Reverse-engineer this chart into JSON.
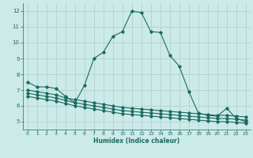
{
  "xlabel": "Humidex (Indice chaleur)",
  "bg_color": "#cceae7",
  "grid_color": "#aacfcc",
  "line_color": "#1a6b62",
  "xlim": [
    -0.5,
    23.5
  ],
  "ylim": [
    4.5,
    12.5
  ],
  "xticks": [
    0,
    1,
    2,
    3,
    4,
    5,
    6,
    7,
    8,
    9,
    10,
    11,
    12,
    13,
    14,
    15,
    16,
    17,
    18,
    19,
    20,
    21,
    22,
    23
  ],
  "yticks": [
    5,
    6,
    7,
    8,
    9,
    10,
    11,
    12
  ],
  "line1_x": [
    0,
    1,
    2,
    3,
    4,
    5,
    6,
    7,
    8,
    9,
    10,
    11,
    12,
    13,
    14,
    15,
    16,
    17,
    18,
    19,
    20,
    21,
    22,
    23
  ],
  "line1_y": [
    7.5,
    7.2,
    7.2,
    7.1,
    6.6,
    6.2,
    7.3,
    9.0,
    9.4,
    10.4,
    10.7,
    12.0,
    11.9,
    10.7,
    10.65,
    9.2,
    8.5,
    6.9,
    5.55,
    5.4,
    5.35,
    5.85,
    5.2,
    5.0
  ],
  "line2_x": [
    0,
    1,
    2,
    3,
    4,
    5,
    6,
    7,
    8,
    9,
    10,
    11,
    12,
    13,
    14,
    15,
    16,
    17,
    18,
    19,
    20,
    21,
    22,
    23
  ],
  "line2_y": [
    7.0,
    6.9,
    6.8,
    6.7,
    6.5,
    6.4,
    6.3,
    6.2,
    6.1,
    6.0,
    5.9,
    5.85,
    5.8,
    5.75,
    5.7,
    5.65,
    5.6,
    5.55,
    5.5,
    5.45,
    5.4,
    5.4,
    5.35,
    5.3
  ],
  "line3_x": [
    0,
    1,
    2,
    3,
    4,
    5,
    6,
    7,
    8,
    9,
    10,
    11,
    12,
    13,
    14,
    15,
    16,
    17,
    18,
    19,
    20,
    21,
    22,
    23
  ],
  "line3_y": [
    6.8,
    6.7,
    6.6,
    6.5,
    6.35,
    6.2,
    6.1,
    6.0,
    5.9,
    5.8,
    5.7,
    5.65,
    5.6,
    5.55,
    5.5,
    5.45,
    5.4,
    5.35,
    5.3,
    5.25,
    5.2,
    5.2,
    5.15,
    5.1
  ],
  "line4_x": [
    0,
    1,
    2,
    3,
    4,
    5,
    6,
    7,
    8,
    9,
    10,
    11,
    12,
    13,
    14,
    15,
    16,
    17,
    18,
    19,
    20,
    21,
    22,
    23
  ],
  "line4_y": [
    6.6,
    6.5,
    6.4,
    6.3,
    6.15,
    6.0,
    5.9,
    5.8,
    5.7,
    5.6,
    5.5,
    5.45,
    5.4,
    5.35,
    5.3,
    5.25,
    5.2,
    5.15,
    5.1,
    5.05,
    5.0,
    5.0,
    4.95,
    4.9
  ],
  "marker": "D",
  "marker_size": 1.8,
  "linewidth": 0.8
}
